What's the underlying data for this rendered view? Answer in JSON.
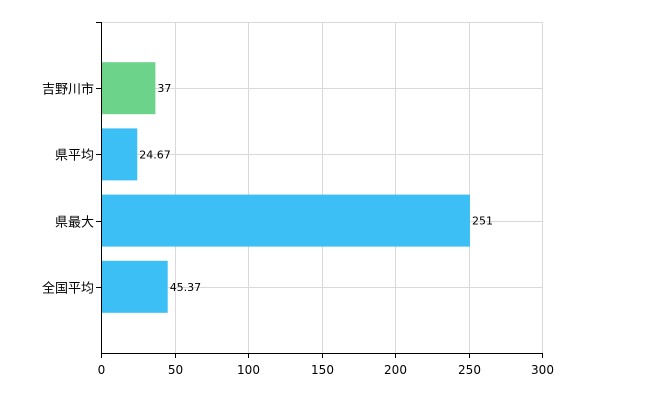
{
  "chart_data": {
    "type": "bar",
    "orientation": "horizontal",
    "categories": [
      "吉野川市",
      "県平均",
      "県最大",
      "全国平均"
    ],
    "values": [
      37,
      24.67,
      251,
      45.37
    ],
    "data_labels": [
      "37",
      "24.67",
      "251",
      "45.37"
    ],
    "bar_colors": [
      "#6cd38a",
      "#3cbff5",
      "#3cbff5",
      "#3cbff5"
    ],
    "xlim": [
      0,
      300
    ],
    "x_ticks": [
      0,
      50,
      100,
      150,
      200,
      250,
      300
    ],
    "x_tick_labels": [
      "0",
      "50",
      "100",
      "150",
      "200",
      "250",
      "300"
    ],
    "grid": true,
    "legend": "none",
    "title": "",
    "xlabel": "",
    "ylabel": ""
  }
}
